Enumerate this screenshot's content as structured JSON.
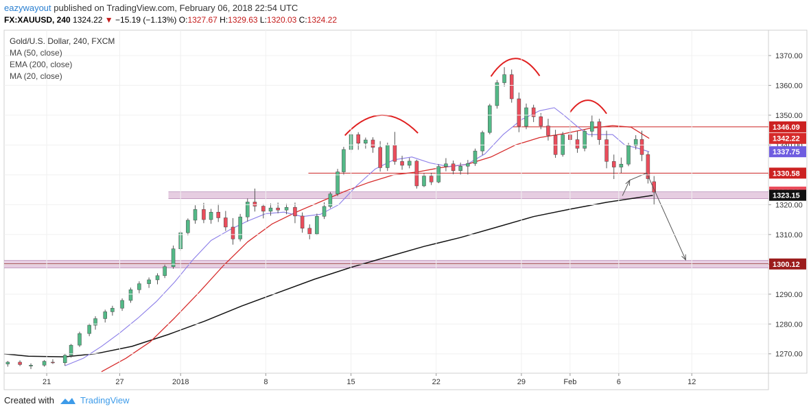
{
  "header": {
    "user": "eazywayout",
    "published": "published on TradingView.com, February 06, 2018 22:54 UTC",
    "symbol": "FX:XAUUSD, 240",
    "last": "1324.22",
    "change_arrow": "▼",
    "change": "−15.19 (−1.13%)",
    "o_label": "O:",
    "o_value": "1327.67",
    "h_label": "H:",
    "h_value": "1329.63",
    "l_label": "L:",
    "l_value": "1320.03",
    "c_label": "C:",
    "c_value": "1324.22"
  },
  "footer": {
    "created_with": "Created with",
    "brand": "TradingView"
  },
  "colors": {
    "up": "#53b987",
    "down": "#eb4d5c",
    "ma50": "#d62a2a",
    "ema200": "#111111",
    "ma20": "#8a7ce8",
    "hline": "#cc2222",
    "zone": "#e2c4dc",
    "zone_line": "#8e4a8e",
    "arc": "#e02020"
  },
  "chart_data": {
    "type": "candlestick",
    "title": "Gold/U.S. Dollar, 240, FXCM",
    "legend": [
      "MA (50, close)",
      "EMA (200, close)",
      "MA (20, close)"
    ],
    "y_ticks": [
      1270,
      1280,
      1290,
      1300,
      1310,
      1320,
      1330,
      1340,
      1350,
      1360,
      1370
    ],
    "y_tick_labels": [
      "1270.00",
      "1280.00",
      "1290.00",
      "1300.00",
      "1310.00",
      "1320.00",
      "1330.00",
      "1340.00",
      "1350.00",
      "1360.00",
      "1370.00"
    ],
    "ylim": [
      1263.5,
      1378.5
    ],
    "x_ticks": [
      {
        "label": "21",
        "day": 21
      },
      {
        "label": "27",
        "day": 27
      },
      {
        "label": "2018",
        "day": 32
      },
      {
        "label": "8",
        "day": 39
      },
      {
        "label": "15",
        "day": 46
      },
      {
        "label": "22",
        "day": 53
      },
      {
        "label": "29",
        "day": 60
      },
      {
        "label": "Feb",
        "day": 64
      },
      {
        "label": "6",
        "day": 68
      },
      {
        "label": "12",
        "day": 74
      }
    ],
    "xlim": [
      17.5,
      80.3
    ],
    "h_lines": [
      {
        "value": 1346.09,
        "from_day": 59.3,
        "tag": "1346.09"
      },
      {
        "value": 1330.58,
        "from_day": 42.5,
        "tag": "1330.58"
      }
    ],
    "zones": [
      {
        "low": 1322.0,
        "high": 1324.3,
        "from_day": 31.0
      },
      {
        "low": 1298.8,
        "high": 1301.3,
        "from_day": 17.5
      }
    ],
    "support_line": 1300.12,
    "price_tags": [
      {
        "label": "1342.22",
        "value": 1342.22,
        "color": "#d62a2a"
      },
      {
        "label": "1337.75",
        "value": 1337.75,
        "color": "#6f5de0"
      },
      {
        "label": "1324.22",
        "value": 1324.22,
        "color": "#eb4d5c"
      },
      {
        "label": "1323.15",
        "value": 1323.15,
        "color": "#111111"
      },
      {
        "label": "1300.12",
        "value": 1300.12,
        "color": "#9b1c1c"
      }
    ],
    "projection": [
      [
        68.3,
        1323.0
      ],
      [
        68.9,
        1328.2
      ],
      [
        70.3,
        1330.6
      ],
      [
        73.5,
        1301.5
      ]
    ],
    "arcs": [
      {
        "start": [
          45.5,
          1343.2
        ],
        "peak": [
          48.5,
          1350.0
        ],
        "end": [
          51.5,
          1344.0
        ]
      },
      {
        "start": [
          57.5,
          1363.0
        ],
        "peak": [
          59.5,
          1369.0
        ],
        "end": [
          61.5,
          1363.2
        ]
      },
      {
        "start": [
          64.0,
          1351.0
        ],
        "peak": [
          65.5,
          1355.0
        ],
        "end": [
          67.0,
          1350.5
        ]
      }
    ],
    "candles": [
      [
        17.8,
        1266.6,
        1267.6,
        1265.7,
        1267.2
      ],
      [
        18.8,
        1267.2,
        1267.8,
        1265.9,
        1266.4
      ],
      [
        19.7,
        1265.9,
        1266.8,
        1264.9,
        1266.2
      ],
      [
        20.8,
        1266.2,
        1267.9,
        1265.7,
        1267.5
      ],
      [
        21.5,
        1267.2,
        1268.2,
        1266.6,
        1267.0
      ],
      [
        22.5,
        1267.0,
        1270.1,
        1266.0,
        1269.5
      ],
      [
        23.0,
        1269.5,
        1273.3,
        1268.7,
        1272.9
      ],
      [
        23.7,
        1272.9,
        1277.4,
        1272.3,
        1276.8
      ],
      [
        24.5,
        1276.8,
        1280.2,
        1275.9,
        1279.6
      ],
      [
        25.0,
        1279.6,
        1282.6,
        1278.1,
        1281.8
      ],
      [
        25.8,
        1281.8,
        1284.8,
        1280.5,
        1284.1
      ],
      [
        26.4,
        1284.1,
        1286.1,
        1282.8,
        1285.3
      ],
      [
        27.2,
        1285.3,
        1288.6,
        1284.4,
        1287.9
      ],
      [
        27.9,
        1287.9,
        1292.2,
        1287.1,
        1291.5
      ],
      [
        28.6,
        1291.5,
        1294.3,
        1290.3,
        1293.5
      ],
      [
        29.4,
        1293.5,
        1295.6,
        1292.1,
        1294.8
      ],
      [
        30.1,
        1294.8,
        1297.0,
        1293.3,
        1296.2
      ],
      [
        30.7,
        1296.2,
        1300.1,
        1295.4,
        1299.2
      ],
      [
        31.4,
        1299.2,
        1306.3,
        1298.5,
        1305.2
      ],
      [
        32.0,
        1305.2,
        1311.2,
        1304.5,
        1310.6
      ],
      [
        32.6,
        1310.6,
        1315.4,
        1309.7,
        1314.8
      ],
      [
        33.2,
        1314.8,
        1319.8,
        1313.6,
        1318.4
      ],
      [
        33.9,
        1318.4,
        1320.6,
        1313.8,
        1315.0
      ],
      [
        34.5,
        1315.0,
        1318.6,
        1313.6,
        1317.5
      ],
      [
        35.1,
        1317.5,
        1320.2,
        1314.2,
        1315.6
      ],
      [
        35.7,
        1315.6,
        1317.9,
        1311.2,
        1312.5
      ],
      [
        36.3,
        1312.5,
        1315.5,
        1306.6,
        1308.5
      ],
      [
        36.9,
        1308.5,
        1316.9,
        1307.7,
        1315.9
      ],
      [
        37.5,
        1315.9,
        1322.1,
        1314.3,
        1320.9
      ],
      [
        38.1,
        1320.9,
        1325.4,
        1317.7,
        1319.5
      ],
      [
        38.8,
        1319.5,
        1320.2,
        1315.4,
        1317.8
      ],
      [
        39.4,
        1317.8,
        1320.4,
        1316.3,
        1318.9
      ],
      [
        40.0,
        1318.9,
        1320.7,
        1317.1,
        1318.2
      ],
      [
        40.7,
        1318.2,
        1320.3,
        1316.8,
        1319.1
      ],
      [
        41.4,
        1319.1,
        1320.7,
        1313.8,
        1316.2
      ],
      [
        42.0,
        1316.2,
        1317.4,
        1310.6,
        1312.1
      ],
      [
        42.6,
        1312.1,
        1313.4,
        1308.4,
        1310.2
      ],
      [
        43.2,
        1310.2,
        1317.0,
        1309.8,
        1316.1
      ],
      [
        43.8,
        1316.1,
        1320.8,
        1315.2,
        1319.4
      ],
      [
        44.3,
        1319.4,
        1324.3,
        1318.8,
        1323.6
      ],
      [
        44.9,
        1323.6,
        1332.0,
        1322.9,
        1331.0
      ],
      [
        45.4,
        1331.0,
        1339.4,
        1329.9,
        1338.5
      ],
      [
        46.0,
        1338.5,
        1344.5,
        1337.3,
        1343.5
      ],
      [
        46.6,
        1343.5,
        1344.3,
        1338.4,
        1340.6
      ],
      [
        47.2,
        1340.6,
        1342.5,
        1338.8,
        1341.7
      ],
      [
        47.8,
        1341.7,
        1342.6,
        1337.4,
        1339.2
      ],
      [
        48.4,
        1339.2,
        1341.3,
        1331.1,
        1332.4
      ],
      [
        49.0,
        1332.4,
        1340.8,
        1331.3,
        1339.9
      ],
      [
        49.6,
        1339.9,
        1344.4,
        1333.4,
        1334.5
      ],
      [
        50.2,
        1334.5,
        1336.4,
        1331.7,
        1333.2
      ],
      [
        50.8,
        1333.2,
        1335.7,
        1332.2,
        1334.6
      ],
      [
        51.4,
        1334.6,
        1335.1,
        1325.4,
        1326.3
      ],
      [
        52.0,
        1326.3,
        1330.5,
        1325.9,
        1329.6
      ],
      [
        52.6,
        1329.6,
        1330.7,
        1326.6,
        1327.6
      ],
      [
        53.2,
        1327.6,
        1333.6,
        1327.2,
        1332.8
      ],
      [
        53.8,
        1332.8,
        1335.6,
        1331.2,
        1333.7
      ],
      [
        54.4,
        1333.7,
        1334.8,
        1330.2,
        1331.4
      ],
      [
        55.0,
        1331.4,
        1334.1,
        1330.1,
        1332.9
      ],
      [
        55.6,
        1332.9,
        1335.0,
        1330.1,
        1333.8
      ],
      [
        56.2,
        1333.8,
        1338.8,
        1333.0,
        1338.0
      ],
      [
        56.8,
        1338.0,
        1344.8,
        1336.6,
        1344.2
      ],
      [
        57.4,
        1344.2,
        1353.8,
        1343.6,
        1353.2
      ],
      [
        58.0,
        1353.2,
        1361.8,
        1352.2,
        1360.9
      ],
      [
        58.6,
        1360.9,
        1366.1,
        1359.6,
        1363.6
      ],
      [
        59.2,
        1363.6,
        1365.3,
        1354.2,
        1355.5
      ],
      [
        59.8,
        1355.5,
        1357.6,
        1344.3,
        1346.3
      ],
      [
        60.4,
        1346.3,
        1353.9,
        1345.3,
        1352.5
      ],
      [
        61.0,
        1352.5,
        1353.5,
        1347.7,
        1349.5
      ],
      [
        61.6,
        1349.5,
        1350.7,
        1345.3,
        1346.4
      ],
      [
        62.2,
        1346.4,
        1348.8,
        1341.5,
        1343.2
      ],
      [
        62.8,
        1343.2,
        1345.1,
        1335.7,
        1336.8
      ],
      [
        63.4,
        1336.8,
        1344.4,
        1336.1,
        1343.4
      ],
      [
        64.0,
        1343.4,
        1346.8,
        1340.2,
        1341.8
      ],
      [
        64.6,
        1341.8,
        1344.7,
        1337.4,
        1338.9
      ],
      [
        65.2,
        1338.9,
        1345.3,
        1337.9,
        1344.6
      ],
      [
        65.8,
        1344.6,
        1349.9,
        1342.7,
        1347.8
      ],
      [
        66.4,
        1347.8,
        1348.8,
        1339.9,
        1341.8
      ],
      [
        67.0,
        1341.8,
        1344.8,
        1332.2,
        1334.5
      ],
      [
        67.6,
        1334.5,
        1336.8,
        1328.6,
        1332.6
      ],
      [
        68.2,
        1332.6,
        1335.8,
        1330.6,
        1333.6
      ],
      [
        68.8,
        1333.6,
        1340.7,
        1332.9,
        1339.8
      ],
      [
        69.4,
        1339.8,
        1343.3,
        1338.5,
        1341.9
      ],
      [
        69.9,
        1341.9,
        1344.8,
        1334.6,
        1336.8
      ],
      [
        70.4,
        1336.8,
        1337.7,
        1327.1,
        1328.7
      ],
      [
        70.9,
        1327.7,
        1329.6,
        1320.0,
        1324.2
      ]
    ],
    "ma20": [
      [
        22.5,
        1266.0
      ],
      [
        24.0,
        1268.5
      ],
      [
        25.5,
        1272.5
      ],
      [
        27.0,
        1277.0
      ],
      [
        28.5,
        1282.0
      ],
      [
        30.0,
        1287.5
      ],
      [
        31.5,
        1294.0
      ],
      [
        33.0,
        1301.5
      ],
      [
        34.5,
        1308.0
      ],
      [
        36.0,
        1311.5
      ],
      [
        37.5,
        1314.5
      ],
      [
        39.0,
        1317.0
      ],
      [
        40.5,
        1317.5
      ],
      [
        42.0,
        1316.0
      ],
      [
        43.5,
        1316.8
      ],
      [
        45.0,
        1320.0
      ],
      [
        46.5,
        1326.5
      ],
      [
        48.0,
        1332.0
      ],
      [
        49.5,
        1335.0
      ],
      [
        51.0,
        1336.0
      ],
      [
        52.5,
        1334.0
      ],
      [
        54.0,
        1332.8
      ],
      [
        55.5,
        1333.5
      ],
      [
        57.0,
        1337.0
      ],
      [
        58.5,
        1343.5
      ],
      [
        60.0,
        1348.5
      ],
      [
        61.5,
        1351.5
      ],
      [
        62.7,
        1352.5
      ],
      [
        63.5,
        1350.0
      ],
      [
        64.5,
        1346.5
      ],
      [
        65.5,
        1343.5
      ],
      [
        66.5,
        1343.5
      ],
      [
        67.5,
        1343.5
      ],
      [
        68.5,
        1340.0
      ],
      [
        69.5,
        1339.0
      ],
      [
        70.5,
        1337.75
      ]
    ],
    "ma50": [
      [
        25.5,
        1264.0
      ],
      [
        27.5,
        1268.5
      ],
      [
        29.5,
        1274.0
      ],
      [
        31.5,
        1282.0
      ],
      [
        33.5,
        1290.5
      ],
      [
        35.5,
        1299.5
      ],
      [
        37.5,
        1307.5
      ],
      [
        39.5,
        1313.5
      ],
      [
        41.5,
        1317.5
      ],
      [
        43.5,
        1321.0
      ],
      [
        45.5,
        1324.5
      ],
      [
        47.5,
        1327.5
      ],
      [
        49.5,
        1330.0
      ],
      [
        51.5,
        1331.0
      ],
      [
        53.5,
        1332.5
      ],
      [
        55.5,
        1333.5
      ],
      [
        57.5,
        1336.0
      ],
      [
        59.5,
        1340.0
      ],
      [
        61.5,
        1342.5
      ],
      [
        63.5,
        1343.8
      ],
      [
        65.5,
        1345.5
      ],
      [
        67.5,
        1346.5
      ],
      [
        69.0,
        1346.0
      ],
      [
        70.5,
        1342.22
      ]
    ],
    "ema200": [
      [
        17.5,
        1270.0
      ],
      [
        19.5,
        1269.2
      ],
      [
        22.5,
        1269.0
      ],
      [
        25.0,
        1270.0
      ],
      [
        28.0,
        1272.5
      ],
      [
        31.0,
        1276.5
      ],
      [
        34.0,
        1281.0
      ],
      [
        37.0,
        1286.0
      ],
      [
        40.0,
        1290.5
      ],
      [
        43.0,
        1295.0
      ],
      [
        46.0,
        1299.0
      ],
      [
        49.0,
        1302.5
      ],
      [
        52.0,
        1306.0
      ],
      [
        55.0,
        1309.0
      ],
      [
        58.0,
        1312.5
      ],
      [
        61.0,
        1316.0
      ],
      [
        64.0,
        1318.5
      ],
      [
        67.0,
        1320.8
      ],
      [
        70.8,
        1323.15
      ]
    ]
  }
}
